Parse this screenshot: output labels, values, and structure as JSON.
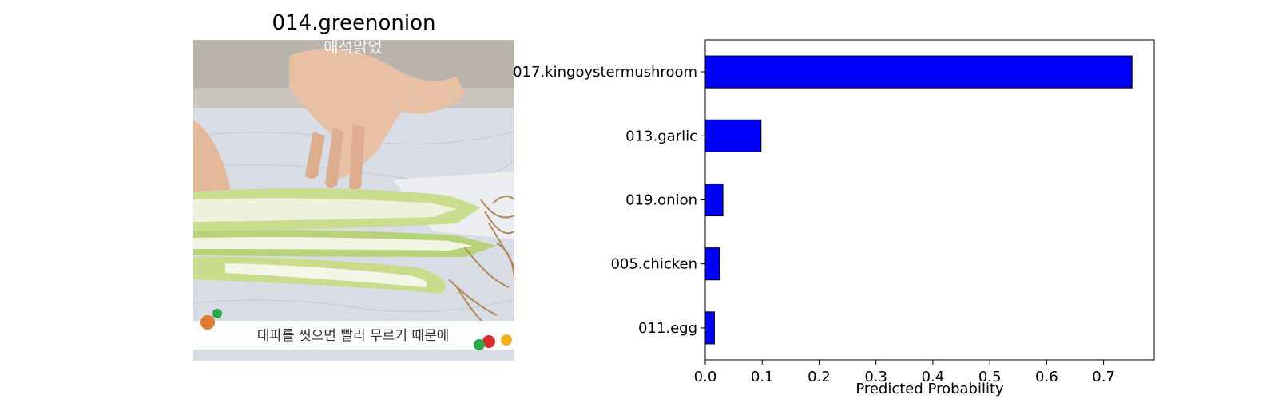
{
  "image_panel": {
    "title": "014.greenonion",
    "overlay_text_top": "애석맑었",
    "caption": "대파를 씻으면 빨리 무르기 때문에"
  },
  "chart_data": {
    "type": "bar",
    "orientation": "horizontal",
    "categories": [
      "017.kingoystermushroom",
      "013.garlic",
      "019.onion",
      "005.chicken",
      "011.egg"
    ],
    "values": [
      0.75,
      0.098,
      0.031,
      0.025,
      0.016
    ],
    "title": "",
    "xlabel": "Predicted Probability",
    "ylabel": "",
    "xlim": [
      0,
      0.789
    ],
    "xticks": [
      0.0,
      0.1,
      0.2,
      0.3,
      0.4,
      0.5,
      0.6,
      0.7
    ],
    "xtick_labels": [
      "0.0",
      "0.1",
      "0.2",
      "0.3",
      "0.4",
      "0.5",
      "0.6",
      "0.7"
    ],
    "grid": false,
    "bar_color": "#0000ff",
    "bar_edge_color": "#000000"
  }
}
